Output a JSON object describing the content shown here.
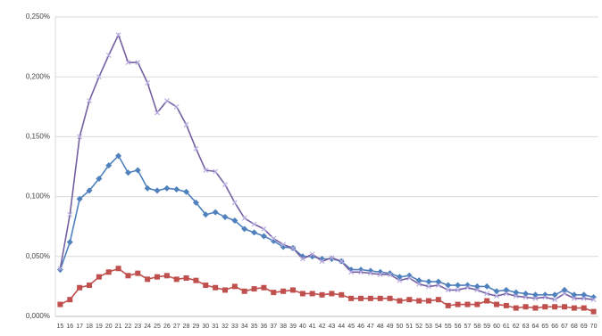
{
  "chart_data": {
    "type": "line",
    "categories": [
      "15",
      "16",
      "17",
      "18",
      "19",
      "20",
      "21",
      "22",
      "23",
      "24",
      "25",
      "26",
      "27",
      "28",
      "29",
      "30",
      "31",
      "32",
      "33",
      "34",
      "35",
      "36",
      "37",
      "38",
      "39",
      "40",
      "41",
      "42",
      "43",
      "44",
      "45",
      "46",
      "47",
      "48",
      "49",
      "50",
      "51",
      "52",
      "53",
      "54",
      "55",
      "56",
      "57",
      "58",
      "59",
      "60",
      "61",
      "62",
      "63",
      "64",
      "65",
      "66",
      "67",
      "68",
      "69",
      "70"
    ],
    "ylim": [
      0,
      0.25
    ],
    "yticks": [
      {
        "value": 0,
        "label": "0,000%"
      },
      {
        "value": 0.05,
        "label": "0,050%"
      },
      {
        "value": 0.1,
        "label": "0,100%"
      },
      {
        "value": 0.15,
        "label": "0,150%"
      },
      {
        "value": 0.2,
        "label": "0,200%"
      },
      {
        "value": 0.25,
        "label": "0,250%"
      }
    ],
    "grid": true,
    "series": [
      {
        "color": "#c0504d",
        "marker": "square",
        "values": [
          0.01,
          0.014,
          0.024,
          0.026,
          0.033,
          0.037,
          0.04,
          0.034,
          0.036,
          0.031,
          0.033,
          0.034,
          0.031,
          0.032,
          0.03,
          0.026,
          0.024,
          0.022,
          0.025,
          0.021,
          0.023,
          0.024,
          0.02,
          0.021,
          0.022,
          0.019,
          0.019,
          0.018,
          0.019,
          0.018,
          0.015,
          0.015,
          0.015,
          0.015,
          0.015,
          0.013,
          0.014,
          0.013,
          0.013,
          0.014,
          0.009,
          0.01,
          0.01,
          0.01,
          0.013,
          0.01,
          0.009,
          0.007,
          0.008,
          0.007,
          0.008,
          0.008,
          0.008,
          0.007,
          0.007,
          0.004
        ]
      },
      {
        "color": "#4f81bd",
        "marker": "diamond",
        "values": [
          0.039,
          0.062,
          0.098,
          0.105,
          0.115,
          0.126,
          0.134,
          0.12,
          0.122,
          0.107,
          0.105,
          0.107,
          0.106,
          0.104,
          0.095,
          0.085,
          0.087,
          0.083,
          0.08,
          0.073,
          0.07,
          0.067,
          0.063,
          0.058,
          0.057,
          0.05,
          0.05,
          0.048,
          0.048,
          0.046,
          0.039,
          0.039,
          0.038,
          0.037,
          0.036,
          0.033,
          0.034,
          0.03,
          0.029,
          0.029,
          0.026,
          0.026,
          0.026,
          0.025,
          0.025,
          0.021,
          0.022,
          0.02,
          0.019,
          0.018,
          0.018,
          0.018,
          0.022,
          0.018,
          0.018,
          0.016
        ]
      },
      {
        "color": "#7460a0",
        "marker": "x",
        "values": [
          0.04,
          0.085,
          0.15,
          0.18,
          0.2,
          0.218,
          0.235,
          0.212,
          0.212,
          0.195,
          0.17,
          0.18,
          0.175,
          0.16,
          0.14,
          0.122,
          0.121,
          0.11,
          0.095,
          0.082,
          0.077,
          0.073,
          0.065,
          0.06,
          0.057,
          0.048,
          0.052,
          0.046,
          0.049,
          0.046,
          0.037,
          0.037,
          0.036,
          0.035,
          0.035,
          0.03,
          0.032,
          0.027,
          0.025,
          0.026,
          0.022,
          0.022,
          0.024,
          0.022,
          0.019,
          0.017,
          0.019,
          0.017,
          0.016,
          0.015,
          0.016,
          0.014,
          0.019,
          0.015,
          0.015,
          0.014
        ]
      }
    ]
  }
}
